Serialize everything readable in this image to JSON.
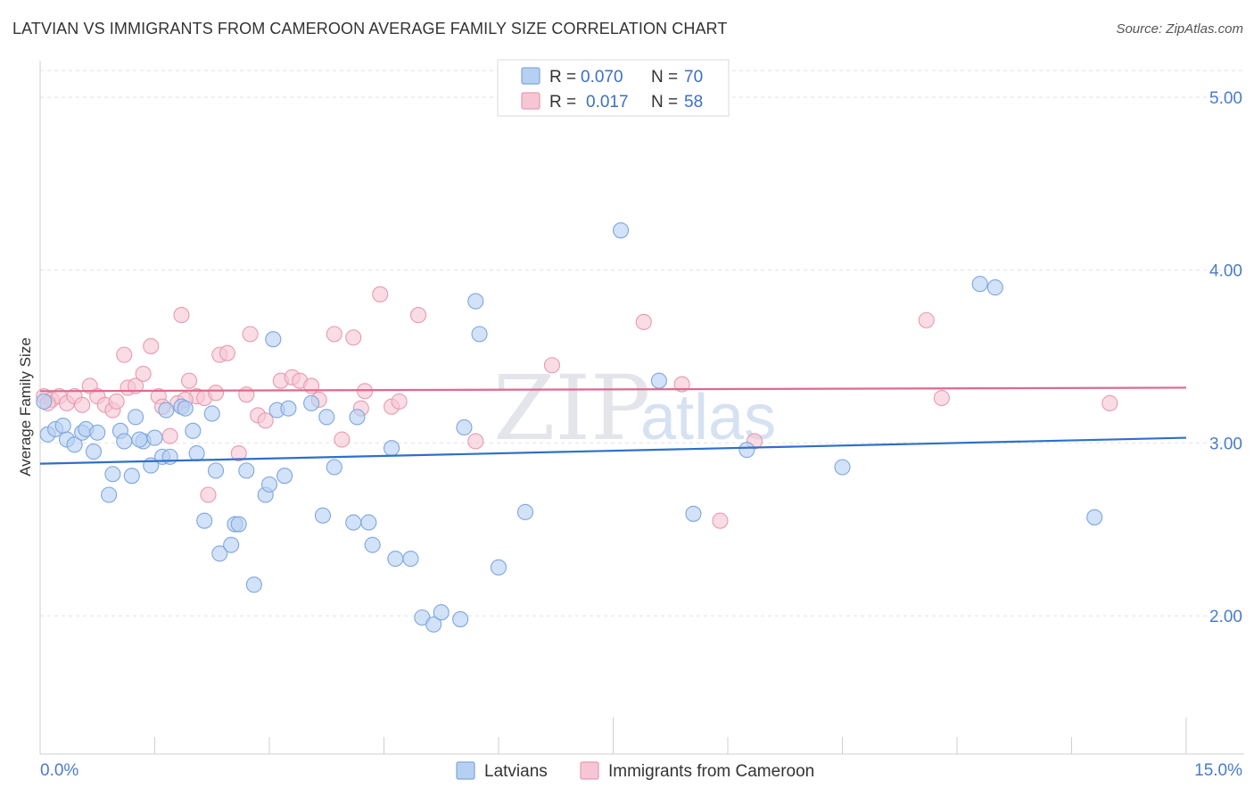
{
  "header": {
    "title": "LATVIAN VS IMMIGRANTS FROM CAMEROON AVERAGE FAMILY SIZE CORRELATION CHART",
    "source": "Source: ZipAtlas.com"
  },
  "watermark": {
    "part1": "ZIP",
    "part2": "atlas"
  },
  "legend_top": {
    "rows": [
      {
        "r_label": "R =",
        "r_value": "0.070",
        "n_label": "N =",
        "n_value": "70"
      },
      {
        "r_label": "R =",
        "r_value": "0.017",
        "n_label": "N =",
        "n_value": "58"
      }
    ]
  },
  "legend_bottom": {
    "series1": "Latvians",
    "series2": "Immigrants from Cameroon"
  },
  "colors": {
    "series1_fill": "#b6d0f3",
    "series1_stroke": "#7fa6dc",
    "series1_line": "#2f6fcb",
    "series2_fill": "#f7c6d4",
    "series2_stroke": "#e79ab1",
    "series2_line": "#e0688f",
    "axis_text": "#4a7cc9"
  },
  "chart_data": {
    "type": "scatter",
    "title": "LATVIAN VS IMMIGRANTS FROM CAMEROON AVERAGE FAMILY SIZE CORRELATION CHART",
    "xlabel": "",
    "ylabel": "Average Family Size",
    "xlim": [
      0,
      15
    ],
    "ylim": [
      1.2,
      5.15
    ],
    "x_tick_labels": [
      "0.0%",
      "15.0%"
    ],
    "y_ticks": [
      2.0,
      3.0,
      4.0,
      5.0
    ],
    "y_tick_labels": [
      "2.00",
      "3.00",
      "4.00",
      "5.00"
    ],
    "grid": "horizontal dashed",
    "legend": "top-center",
    "series": [
      {
        "name": "Latvians",
        "R": 0.07,
        "N": 70,
        "trend": {
          "x": [
            0,
            15
          ],
          "y": [
            2.88,
            3.03
          ]
        },
        "points": [
          [
            0.1,
            3.05
          ],
          [
            0.2,
            3.08
          ],
          [
            0.3,
            3.1
          ],
          [
            0.35,
            3.02
          ],
          [
            0.45,
            2.99
          ],
          [
            0.55,
            3.06
          ],
          [
            0.6,
            3.08
          ],
          [
            0.7,
            2.95
          ],
          [
            0.75,
            3.06
          ],
          [
            0.9,
            2.7
          ],
          [
            0.95,
            2.82
          ],
          [
            1.05,
            3.07
          ],
          [
            1.1,
            3.01
          ],
          [
            1.2,
            2.81
          ],
          [
            1.25,
            3.15
          ],
          [
            1.35,
            3.01
          ],
          [
            1.45,
            2.87
          ],
          [
            1.5,
            3.03
          ],
          [
            1.6,
            2.92
          ],
          [
            1.65,
            3.19
          ],
          [
            1.7,
            2.92
          ],
          [
            1.85,
            3.21
          ],
          [
            1.9,
            3.2
          ],
          [
            2.0,
            3.07
          ],
          [
            2.05,
            2.94
          ],
          [
            2.15,
            2.55
          ],
          [
            2.25,
            3.17
          ],
          [
            2.3,
            2.84
          ],
          [
            2.35,
            2.36
          ],
          [
            2.5,
            2.41
          ],
          [
            2.55,
            2.53
          ],
          [
            2.7,
            2.84
          ],
          [
            2.8,
            2.18
          ],
          [
            2.95,
            2.7
          ],
          [
            3.0,
            2.76
          ],
          [
            3.05,
            3.6
          ],
          [
            3.1,
            3.19
          ],
          [
            3.2,
            2.81
          ],
          [
            3.25,
            3.2
          ],
          [
            3.55,
            3.23
          ],
          [
            3.7,
            2.58
          ],
          [
            3.75,
            3.15
          ],
          [
            3.85,
            2.86
          ],
          [
            4.1,
            2.54
          ],
          [
            4.15,
            3.15
          ],
          [
            4.35,
            2.41
          ],
          [
            4.6,
            2.97
          ],
          [
            4.65,
            2.33
          ],
          [
            4.85,
            2.33
          ],
          [
            5.0,
            1.99
          ],
          [
            5.15,
            1.95
          ],
          [
            5.25,
            2.02
          ],
          [
            5.5,
            1.98
          ],
          [
            5.55,
            3.09
          ],
          [
            5.7,
            3.82
          ],
          [
            5.75,
            3.63
          ],
          [
            6.0,
            2.28
          ],
          [
            6.35,
            2.6
          ],
          [
            7.6,
            4.23
          ],
          [
            8.1,
            3.36
          ],
          [
            8.55,
            2.59
          ],
          [
            9.25,
            2.96
          ],
          [
            10.5,
            2.86
          ],
          [
            12.3,
            3.92
          ],
          [
            12.5,
            3.9
          ],
          [
            13.8,
            2.57
          ],
          [
            0.05,
            3.24
          ],
          [
            1.3,
            3.02
          ],
          [
            2.6,
            2.53
          ],
          [
            4.3,
            2.54
          ]
        ]
      },
      {
        "name": "Immigrants from Cameroon",
        "R": 0.017,
        "N": 58,
        "trend": {
          "x": [
            0,
            15
          ],
          "y": [
            3.3,
            3.32
          ]
        },
        "points": [
          [
            0.05,
            3.27
          ],
          [
            0.15,
            3.25
          ],
          [
            0.25,
            3.27
          ],
          [
            0.35,
            3.23
          ],
          [
            0.45,
            3.27
          ],
          [
            0.55,
            3.22
          ],
          [
            0.65,
            3.33
          ],
          [
            0.75,
            3.27
          ],
          [
            0.85,
            3.22
          ],
          [
            0.95,
            3.19
          ],
          [
            1.0,
            3.24
          ],
          [
            1.1,
            3.51
          ],
          [
            1.15,
            3.32
          ],
          [
            1.25,
            3.33
          ],
          [
            1.35,
            3.4
          ],
          [
            1.45,
            3.56
          ],
          [
            1.55,
            3.27
          ],
          [
            1.6,
            3.21
          ],
          [
            1.7,
            3.04
          ],
          [
            1.8,
            3.23
          ],
          [
            1.85,
            3.74
          ],
          [
            1.95,
            3.36
          ],
          [
            2.05,
            3.27
          ],
          [
            2.15,
            3.26
          ],
          [
            2.2,
            2.7
          ],
          [
            2.3,
            3.29
          ],
          [
            2.35,
            3.51
          ],
          [
            2.45,
            3.52
          ],
          [
            2.6,
            2.94
          ],
          [
            2.7,
            3.28
          ],
          [
            2.75,
            3.63
          ],
          [
            2.85,
            3.16
          ],
          [
            2.95,
            3.13
          ],
          [
            3.15,
            3.36
          ],
          [
            3.3,
            3.38
          ],
          [
            3.4,
            3.36
          ],
          [
            3.55,
            3.33
          ],
          [
            3.65,
            3.25
          ],
          [
            3.85,
            3.63
          ],
          [
            3.95,
            3.02
          ],
          [
            4.1,
            3.61
          ],
          [
            4.2,
            3.2
          ],
          [
            4.25,
            3.3
          ],
          [
            4.45,
            3.86
          ],
          [
            4.6,
            3.21
          ],
          [
            4.7,
            3.24
          ],
          [
            4.95,
            3.74
          ],
          [
            5.7,
            3.01
          ],
          [
            6.7,
            3.45
          ],
          [
            7.9,
            3.7
          ],
          [
            8.4,
            3.34
          ],
          [
            8.9,
            2.55
          ],
          [
            9.35,
            3.01
          ],
          [
            11.6,
            3.71
          ],
          [
            11.8,
            3.26
          ],
          [
            14.0,
            3.23
          ],
          [
            0.1,
            3.23
          ],
          [
            1.9,
            3.25
          ]
        ]
      }
    ]
  }
}
